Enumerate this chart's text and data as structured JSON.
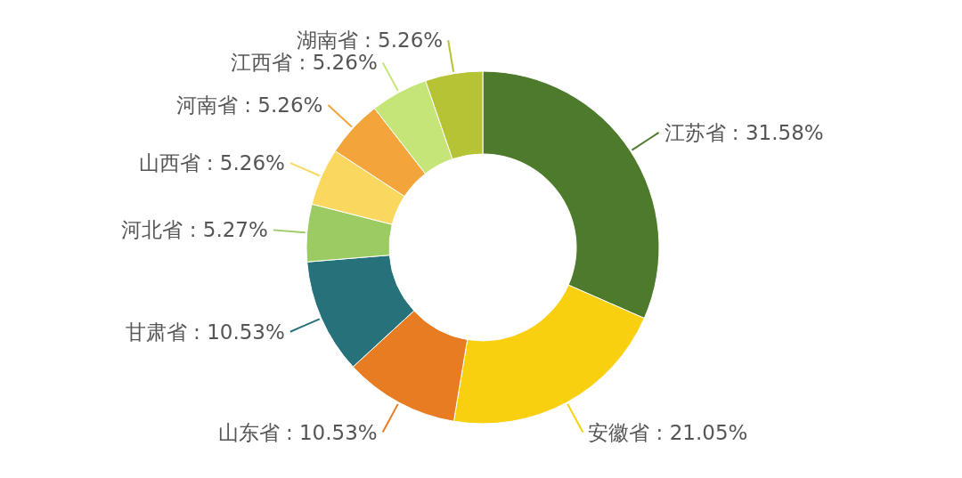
{
  "chart_data": {
    "type": "donut",
    "categories": [
      "江苏省",
      "安徽省",
      "山东省",
      "甘肃省",
      "河北省",
      "山西省",
      "河南省",
      "江西省",
      "湖南省"
    ],
    "values": [
      31.58,
      21.05,
      10.53,
      10.53,
      5.27,
      5.26,
      5.26,
      5.26,
      5.26
    ],
    "value_labels": [
      "31.58%",
      "21.05%",
      "10.53%",
      "10.53%",
      "5.27%",
      "5.26%",
      "5.26%",
      "5.26%",
      "5.26%"
    ],
    "colors": [
      "#4e7a2c",
      "#f9d00f",
      "#e87c22",
      "#26717a",
      "#9bcb62",
      "#fad860",
      "#f3a43b",
      "#c6e579",
      "#b5c334"
    ],
    "legend": false
  }
}
